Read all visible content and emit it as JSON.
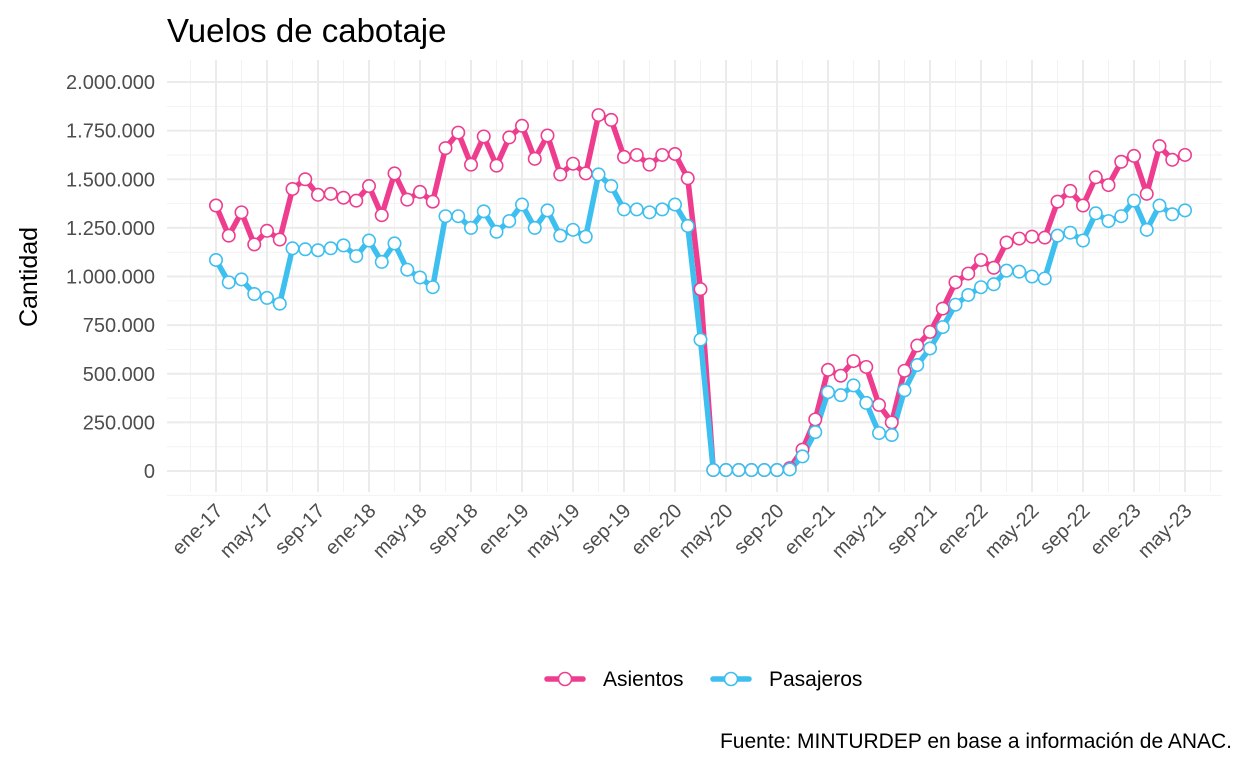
{
  "chart_data": {
    "type": "line",
    "title": "Vuelos de cabotaje",
    "xlabel": "",
    "ylabel": "Cantidad",
    "caption": "Fuente: MINTURDEP en base a información de ANAC.",
    "ylim": [
      0,
      2000000
    ],
    "yticks": [
      0,
      250000,
      500000,
      750000,
      1000000,
      1250000,
      1500000,
      1750000,
      2000000
    ],
    "ytick_labels": [
      "0",
      "250.000",
      "500.000",
      "750.000",
      "1.000.000",
      "1.250.000",
      "1.500.000",
      "1.750.000",
      "2.000.000"
    ],
    "xtick_labels": [
      "ene-17",
      "may-17",
      "sep-17",
      "ene-18",
      "may-18",
      "sep-18",
      "ene-19",
      "may-19",
      "sep-19",
      "ene-20",
      "may-20",
      "sep-20",
      "ene-21",
      "may-21",
      "sep-21",
      "ene-22",
      "may-22",
      "sep-22",
      "ene-23",
      "may-23"
    ],
    "xtick_index": [
      0,
      4,
      8,
      12,
      16,
      20,
      24,
      28,
      32,
      36,
      40,
      44,
      48,
      52,
      56,
      60,
      64,
      68,
      72,
      76
    ],
    "x_start": "ene-17",
    "x_end": "may-23",
    "grid": true,
    "legend_position": "bottom",
    "series": [
      {
        "name": "Asientos",
        "color": "#ee3d8f",
        "values": [
          1365000,
          1210000,
          1330000,
          1165000,
          1235000,
          1190000,
          1450000,
          1500000,
          1420000,
          1425000,
          1405000,
          1390000,
          1465000,
          1315000,
          1530000,
          1395000,
          1435000,
          1385000,
          1660000,
          1740000,
          1575000,
          1720000,
          1570000,
          1715000,
          1775000,
          1605000,
          1725000,
          1525000,
          1580000,
          1530000,
          1830000,
          1805000,
          1615000,
          1625000,
          1575000,
          1625000,
          1630000,
          1505000,
          935000,
          5000,
          5000,
          5000,
          5000,
          5000,
          5000,
          15000,
          110000,
          265000,
          520000,
          490000,
          565000,
          535000,
          340000,
          250000,
          515000,
          645000,
          715000,
          835000,
          970000,
          1015000,
          1085000,
          1045000,
          1175000,
          1195000,
          1205000,
          1200000,
          1385000,
          1440000,
          1365000,
          1510000,
          1470000,
          1590000,
          1620000,
          1425000,
          1670000,
          1600000,
          1625000
        ]
      },
      {
        "name": "Pasajeros",
        "color": "#3dbfef",
        "values": [
          1085000,
          970000,
          985000,
          910000,
          890000,
          860000,
          1145000,
          1140000,
          1135000,
          1145000,
          1160000,
          1105000,
          1185000,
          1075000,
          1170000,
          1035000,
          995000,
          945000,
          1310000,
          1310000,
          1250000,
          1335000,
          1230000,
          1285000,
          1370000,
          1250000,
          1340000,
          1210000,
          1240000,
          1205000,
          1525000,
          1465000,
          1345000,
          1345000,
          1330000,
          1345000,
          1370000,
          1260000,
          675000,
          5000,
          5000,
          5000,
          5000,
          5000,
          5000,
          8000,
          75000,
          200000,
          405000,
          390000,
          440000,
          350000,
          195000,
          185000,
          415000,
          545000,
          630000,
          740000,
          855000,
          905000,
          945000,
          960000,
          1030000,
          1025000,
          1000000,
          990000,
          1210000,
          1225000,
          1185000,
          1325000,
          1285000,
          1310000,
          1390000,
          1240000,
          1365000,
          1320000,
          1340000
        ]
      }
    ]
  }
}
